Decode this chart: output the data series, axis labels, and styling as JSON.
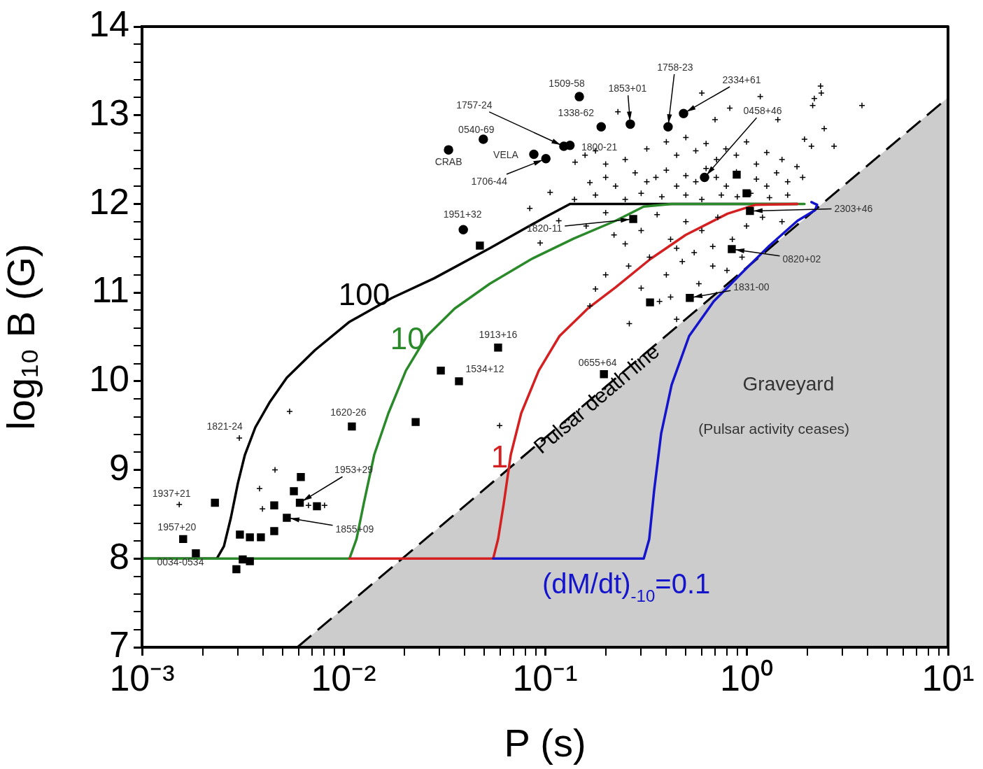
{
  "chart_data": {
    "type": "scatter",
    "xlabel": "P (s)",
    "ylabel": "log₁₀ B (G)",
    "log": "x",
    "legend": false,
    "xlim": [
      0.001,
      10
    ],
    "ylim": [
      7,
      14
    ],
    "xticks": [
      {
        "value": 0.001,
        "label": "10⁻³"
      },
      {
        "value": 0.002,
        "label": null
      },
      {
        "value": 0.003,
        "label": null
      },
      {
        "value": 0.004,
        "label": null
      },
      {
        "value": 0.005,
        "label": null
      },
      {
        "value": 0.006,
        "label": null
      },
      {
        "value": 0.007,
        "label": null
      },
      {
        "value": 0.008,
        "label": null
      },
      {
        "value": 0.009,
        "label": null
      },
      {
        "value": 0.01,
        "label": "10⁻²"
      },
      {
        "value": 0.02,
        "label": null
      },
      {
        "value": 0.03,
        "label": null
      },
      {
        "value": 0.04,
        "label": null
      },
      {
        "value": 0.05,
        "label": null
      },
      {
        "value": 0.06,
        "label": null
      },
      {
        "value": 0.07,
        "label": null
      },
      {
        "value": 0.08,
        "label": null
      },
      {
        "value": 0.09,
        "label": null
      },
      {
        "value": 0.1,
        "label": "10⁻¹"
      },
      {
        "value": 0.2,
        "label": null
      },
      {
        "value": 0.3,
        "label": null
      },
      {
        "value": 0.4,
        "label": null
      },
      {
        "value": 0.5,
        "label": null
      },
      {
        "value": 0.6,
        "label": null
      },
      {
        "value": 0.7,
        "label": null
      },
      {
        "value": 0.8,
        "label": null
      },
      {
        "value": 0.9,
        "label": null
      },
      {
        "value": 1,
        "label": "10⁰"
      },
      {
        "value": 2,
        "label": null
      },
      {
        "value": 3,
        "label": null
      },
      {
        "value": 4,
        "label": null
      },
      {
        "value": 5,
        "label": null
      },
      {
        "value": 6,
        "label": null
      },
      {
        "value": 7,
        "label": null
      },
      {
        "value": 8,
        "label": null
      },
      {
        "value": 9,
        "label": null
      },
      {
        "value": 10,
        "label": "10¹"
      }
    ],
    "yticks": [
      7,
      {
        "value": 7.2,
        "label": null
      },
      {
        "value": 7.4,
        "label": null
      },
      {
        "value": 7.6,
        "label": null
      },
      {
        "value": 7.8,
        "label": null
      },
      8,
      {
        "value": 8.2,
        "label": null
      },
      {
        "value": 8.4,
        "label": null
      },
      {
        "value": 8.6,
        "label": null
      },
      {
        "value": 8.8,
        "label": null
      },
      9,
      {
        "value": 9.2,
        "label": null
      },
      {
        "value": 9.4,
        "label": null
      },
      {
        "value": 9.6,
        "label": null
      },
      {
        "value": 9.8,
        "label": null
      },
      10,
      {
        "value": 10.2,
        "label": null
      },
      {
        "value": 10.4,
        "label": null
      },
      {
        "value": 10.6,
        "label": null
      },
      {
        "value": 10.8,
        "label": null
      },
      11,
      {
        "value": 11.2,
        "label": null
      },
      {
        "value": 11.4,
        "label": null
      },
      {
        "value": 11.6,
        "label": null
      },
      {
        "value": 11.8,
        "label": null
      },
      12,
      {
        "value": 12.2,
        "label": null
      },
      {
        "value": 12.4,
        "label": null
      },
      {
        "value": 12.6,
        "label": null
      },
      {
        "value": 12.8,
        "label": null
      },
      13,
      {
        "value": 13.2,
        "label": null
      },
      {
        "value": 13.4,
        "label": null
      },
      {
        "value": 13.6,
        "label": null
      },
      {
        "value": 13.8,
        "label": null
      },
      14
    ],
    "series": [
      {
        "name": "Pulsar death line",
        "type": "area",
        "color": "#000000",
        "line_style": "dashed",
        "marker": "none",
        "x": [
          0.0059,
          10
        ],
        "values": [
          7.0,
          13.2
        ]
      },
      {
        "name": "100",
        "type": "line",
        "color": "#000000",
        "marker": "none",
        "x": [
          0.001,
          0.00235,
          0.00255,
          0.00276,
          0.00299,
          0.00324,
          0.00365,
          0.00429,
          0.00523,
          0.00721,
          0.0107,
          0.0174,
          0.0281,
          0.0532,
          0.1,
          0.133,
          1.79
        ],
        "values": [
          8.0,
          8.0,
          8.14,
          8.46,
          8.85,
          9.17,
          9.48,
          9.76,
          10.04,
          10.35,
          10.67,
          10.94,
          11.16,
          11.5,
          11.85,
          12.0,
          12.0
        ]
      },
      {
        "name": "10",
        "type": "line",
        "color": "#2a8a2a",
        "marker": "none",
        "x": [
          0.001,
          0.0107,
          0.0116,
          0.0126,
          0.0142,
          0.0167,
          0.0204,
          0.0259,
          0.0356,
          0.0532,
          0.0859,
          0.139,
          0.224,
          0.309,
          0.425,
          1.94
        ],
        "values": [
          8.0,
          8.0,
          8.22,
          8.62,
          9.17,
          9.64,
          10.12,
          10.51,
          10.82,
          11.1,
          11.38,
          11.61,
          11.81,
          11.97,
          12.0,
          12.0
        ]
      },
      {
        "name": "1",
        "type": "line",
        "color": "#d42020",
        "marker": "none",
        "x": [
          0.0107,
          0.0553,
          0.0585,
          0.0624,
          0.0676,
          0.0762,
          0.0931,
          0.118,
          0.163,
          0.224,
          0.334,
          0.499,
          0.805,
          1.11,
          1.79
        ],
        "values": [
          8.0,
          8.0,
          8.22,
          8.62,
          9.17,
          9.64,
          10.12,
          10.51,
          10.82,
          11.06,
          11.38,
          11.65,
          11.89,
          11.99,
          12.0
        ]
      },
      {
        "name": "(dM/dt)$_{-10}$=0.1",
        "type": "line",
        "color": "#1414cc",
        "marker": "none",
        "x": [
          0.0553,
          0.309,
          0.329,
          0.348,
          0.377,
          0.425,
          0.519,
          0.687,
          0.946,
          1.3,
          1.79,
          2.19,
          2.24,
          2.1
        ],
        "values": [
          8.0,
          8.0,
          8.22,
          8.77,
          9.41,
          9.96,
          10.51,
          10.9,
          11.22,
          11.53,
          11.81,
          11.93,
          11.99,
          12.02
        ]
      },
      {
        "type": "scatter",
        "color": "#000000",
        "marker": "cross",
        "x": [
          2.33,
          2.35,
          2.17,
          2.13,
          3.74,
          1.17,
          0.826,
          0.6,
          0.698,
          1.43,
          0.23,
          2.43,
          1.94,
          2.72,
          2.1,
          0.32,
          0.4,
          0.45,
          0.5,
          0.56,
          0.63,
          0.71,
          0.79,
          0.89,
          1.0,
          1.12,
          1.26,
          1.5,
          1.78,
          0.25,
          0.2,
          0.178,
          0.141,
          0.158,
          0.167,
          0.2,
          0.224,
          0.28,
          0.32,
          0.355,
          0.4,
          0.45,
          0.5,
          0.56,
          0.63,
          0.708,
          0.794,
          0.891,
          1.12,
          1.26,
          1.41,
          1.6,
          1.9,
          0.106,
          0.14,
          0.178,
          0.25,
          0.3,
          0.38,
          0.5,
          0.6,
          0.75,
          0.9,
          1.05,
          1.3,
          1.6,
          0.084,
          0.117,
          0.16,
          0.2,
          0.22,
          0.3,
          0.36,
          0.42,
          0.5,
          0.6,
          0.72,
          0.85,
          1.0,
          1.2,
          1.5,
          0.0946,
          0.25,
          0.45,
          0.68,
          0.178,
          0.26,
          0.33,
          0.4,
          0.48,
          0.58,
          0.68,
          0.8,
          0.95,
          0.3,
          0.55,
          0.2,
          0.167,
          0.262,
          0.37,
          0.45,
          0.42,
          0.0595,
          0.0054,
          0.00457,
          0.00383,
          0.00304,
          0.00153,
          0.0067,
          0.00805,
          0.00396
        ],
        "values": [
          13.33,
          13.25,
          13.19,
          13.11,
          13.11,
          13.21,
          13.08,
          13.25,
          12.95,
          12.95,
          13.04,
          12.85,
          12.73,
          12.65,
          12.65,
          12.62,
          12.7,
          12.55,
          12.75,
          12.6,
          12.68,
          12.5,
          12.62,
          12.55,
          12.7,
          12.45,
          12.58,
          12.5,
          12.42,
          12.5,
          12.45,
          12.6,
          12.47,
          12.55,
          12.24,
          12.3,
          12.2,
          12.35,
          12.25,
          12.3,
          12.38,
          12.2,
          12.32,
          12.25,
          12.4,
          12.3,
          12.2,
          12.36,
          12.28,
          12.2,
          12.35,
          12.25,
          12.3,
          12.13,
          12.05,
          12.1,
          12.05,
          12.12,
          12.08,
          12.1,
          12.05,
          12.1,
          12.08,
          12.12,
          12.07,
          12.1,
          11.95,
          11.81,
          11.75,
          11.9,
          11.65,
          11.7,
          11.88,
          11.6,
          11.8,
          11.7,
          11.85,
          11.6,
          11.75,
          11.85,
          11.8,
          11.56,
          11.55,
          11.5,
          11.52,
          11.04,
          11.3,
          11.4,
          11.2,
          11.35,
          11.1,
          11.3,
          11.25,
          11.4,
          11.05,
          11.45,
          11.2,
          10.85,
          10.65,
          10.9,
          10.7,
          10.95,
          9.5,
          9.66,
          9.0,
          8.79,
          9.36,
          8.61,
          8.6,
          8.6,
          8.56
        ]
      },
      {
        "type": "scatter",
        "color": "#000000",
        "marker": "square",
        "x": [
          0.0023,
          0.0016,
          0.00185,
          0.00306,
          0.00343,
          0.00389,
          0.00453,
          0.00453,
          0.00523,
          0.00567,
          0.00614,
          0.00607,
          0.00738,
          0.00316,
          0.00343,
          0.00294,
          0.011,
          0.0228,
          0.0304,
          0.0374,
          0.0585,
          0.0475,
          0.196,
          0.274,
          0.332,
          0.523,
          0.845,
          0.894,
          1.0,
          1.04
        ],
        "values": [
          8.63,
          8.22,
          8.06,
          8.27,
          8.24,
          8.24,
          8.31,
          8.6,
          8.46,
          8.76,
          8.92,
          8.63,
          8.59,
          7.99,
          7.97,
          7.88,
          9.49,
          9.54,
          10.12,
          10.0,
          10.38,
          11.53,
          10.08,
          11.83,
          10.89,
          10.94,
          11.49,
          12.33,
          12.12,
          11.92
        ]
      },
      {
        "type": "scatter",
        "color": "#000000",
        "marker": "circle",
        "x": [
          0.0332,
          0.0494,
          0.088,
          0.101,
          0.124,
          0.133,
          0.148,
          0.19,
          0.265,
          0.408,
          0.487,
          0.619,
          0.0393
        ],
        "values": [
          12.61,
          12.73,
          12.56,
          12.51,
          12.65,
          12.66,
          13.21,
          12.87,
          12.9,
          12.87,
          13.02,
          12.3,
          11.71
        ]
      }
    ],
    "annotations": [
      {
        "text": "1937+21",
        "x": 0.00153,
        "y": 8.61
      },
      {
        "text": "1957+20",
        "x": 0.0016,
        "y": 8.22
      },
      {
        "text": "0034-0534",
        "x": 0.00185,
        "y": 8.06
      },
      {
        "text": "1821-24",
        "x": 0.00304,
        "y": 9.36
      },
      {
        "text": "1953+29",
        "x": 0.00607,
        "y": 8.63
      },
      {
        "text": "1855+09",
        "x": 0.00523,
        "y": 8.46
      },
      {
        "text": "1620-26",
        "x": 0.011,
        "y": 9.49
      },
      {
        "text": "1913+16",
        "x": 0.0585,
        "y": 10.38
      },
      {
        "text": "1534+12",
        "x": 0.0374,
        "y": 10.0
      },
      {
        "text": "0655+64",
        "x": 0.196,
        "y": 10.08
      },
      {
        "text": "1951+32",
        "x": 0.0393,
        "y": 11.71
      },
      {
        "text": "1820-11",
        "x": 0.274,
        "y": 11.83
      },
      {
        "text": "CRAB",
        "x": 0.0332,
        "y": 12.61
      },
      {
        "text": "0540-69",
        "x": 0.0494,
        "y": 12.73
      },
      {
        "text": "VELA",
        "x": 0.088,
        "y": 12.56
      },
      {
        "text": "1706-44",
        "x": 0.101,
        "y": 12.51
      },
      {
        "text": "1757-24",
        "x": 0.124,
        "y": 12.65
      },
      {
        "text": "1800-21",
        "x": 0.133,
        "y": 12.66
      },
      {
        "text": "1509-58",
        "x": 0.148,
        "y": 13.21
      },
      {
        "text": "1338-62",
        "x": 0.19,
        "y": 12.87
      },
      {
        "text": "1853+01",
        "x": 0.265,
        "y": 12.9
      },
      {
        "text": "1758-23",
        "x": 0.408,
        "y": 12.87
      },
      {
        "text": "2334+61",
        "x": 0.487,
        "y": 13.02
      },
      {
        "text": "0458+46",
        "x": 0.619,
        "y": 12.3
      },
      {
        "text": "2303+46",
        "x": 1.04,
        "y": 11.92
      },
      {
        "text": "0820+02",
        "x": 0.845,
        "y": 11.49
      },
      {
        "text": "1831-00",
        "x": 0.523,
        "y": 10.94
      },
      "Graveyard",
      "(Pulsar activity ceases)"
    ]
  }
}
